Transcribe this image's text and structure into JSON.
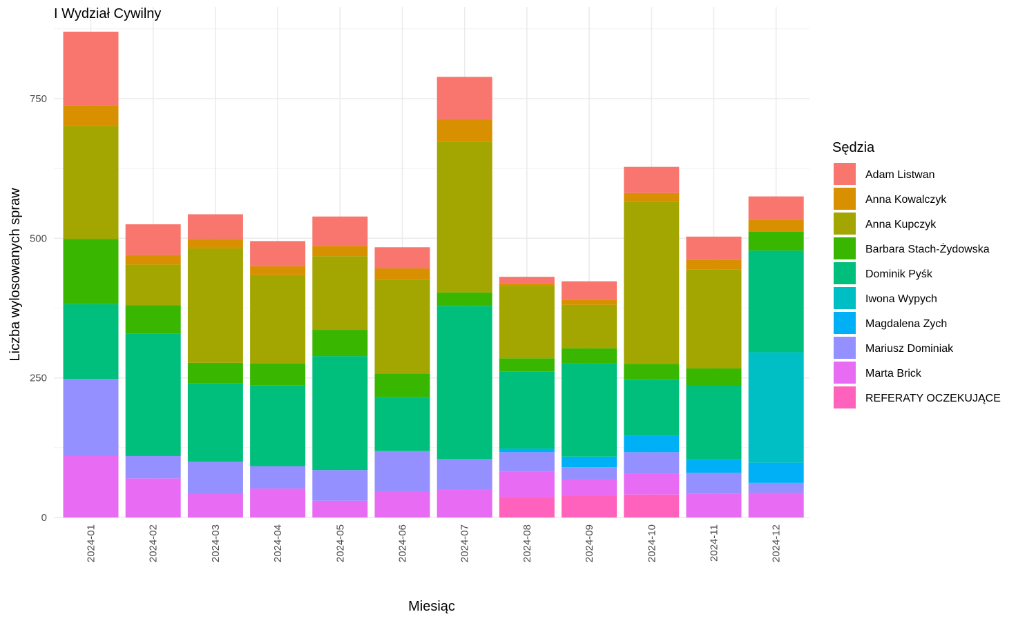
{
  "chart_data": {
    "type": "bar",
    "stacked": true,
    "title": "I Wydział Cywilny",
    "xlabel": "Miesiąc",
    "ylabel": "Liczba wylosowanych spraw",
    "ylim": [
      0,
      900
    ],
    "yticks": [
      0,
      250,
      500,
      750
    ],
    "grid": true,
    "legend_title": "Sędzia",
    "legend_position": "right",
    "categories": [
      "2024-01",
      "2024-02",
      "2024-03",
      "2024-04",
      "2024-05",
      "2024-06",
      "2024-07",
      "2024-08",
      "2024-09",
      "2024-10",
      "2024-11",
      "2024-12"
    ],
    "series": [
      {
        "name": "Adam Listwan",
        "color": "#F8766D",
        "values": [
          132,
          55,
          44,
          45,
          53,
          38,
          76,
          12,
          33,
          47,
          42,
          42
        ]
      },
      {
        "name": "Anna Kowalczyk",
        "color": "#D89000",
        "values": [
          37,
          17,
          17,
          16,
          18,
          20,
          40,
          4,
          9,
          16,
          17,
          21
        ]
      },
      {
        "name": "Anna Kupczyk",
        "color": "#A3A500",
        "values": [
          202,
          73,
          205,
          158,
          132,
          168,
          270,
          130,
          78,
          290,
          177,
          0
        ]
      },
      {
        "name": "Barbara Stach-Żydowska",
        "color": "#39B600",
        "values": [
          117,
          51,
          37,
          39,
          47,
          42,
          24,
          24,
          27,
          27,
          31,
          34
        ]
      },
      {
        "name": "Dominik Pyśk",
        "color": "#00BF7D",
        "values": [
          134,
          219,
          140,
          145,
          204,
          97,
          274,
          138,
          167,
          102,
          132,
          182
        ]
      },
      {
        "name": "Iwona Wypych",
        "color": "#00BFC4",
        "values": [
          0,
          0,
          0,
          0,
          0,
          0,
          0,
          0,
          0,
          0,
          0,
          198
        ]
      },
      {
        "name": "Magdalena Zych",
        "color": "#00B0F6",
        "values": [
          0,
          0,
          0,
          0,
          0,
          0,
          0,
          6,
          19,
          29,
          24,
          36
        ]
      },
      {
        "name": "Mariusz Dominiak",
        "color": "#9590FF",
        "values": [
          138,
          40,
          58,
          40,
          55,
          72,
          55,
          35,
          22,
          38,
          37,
          18
        ]
      },
      {
        "name": "Marta Brick",
        "color": "#E76BF3",
        "values": [
          110,
          70,
          42,
          52,
          30,
          47,
          50,
          45,
          28,
          38,
          43,
          44
        ]
      },
      {
        "name": "REFERATY OCZEKUJĄCE",
        "color": "#FF62BC",
        "values": [
          0,
          0,
          0,
          0,
          0,
          0,
          0,
          37,
          40,
          41,
          0,
          0
        ]
      }
    ]
  }
}
